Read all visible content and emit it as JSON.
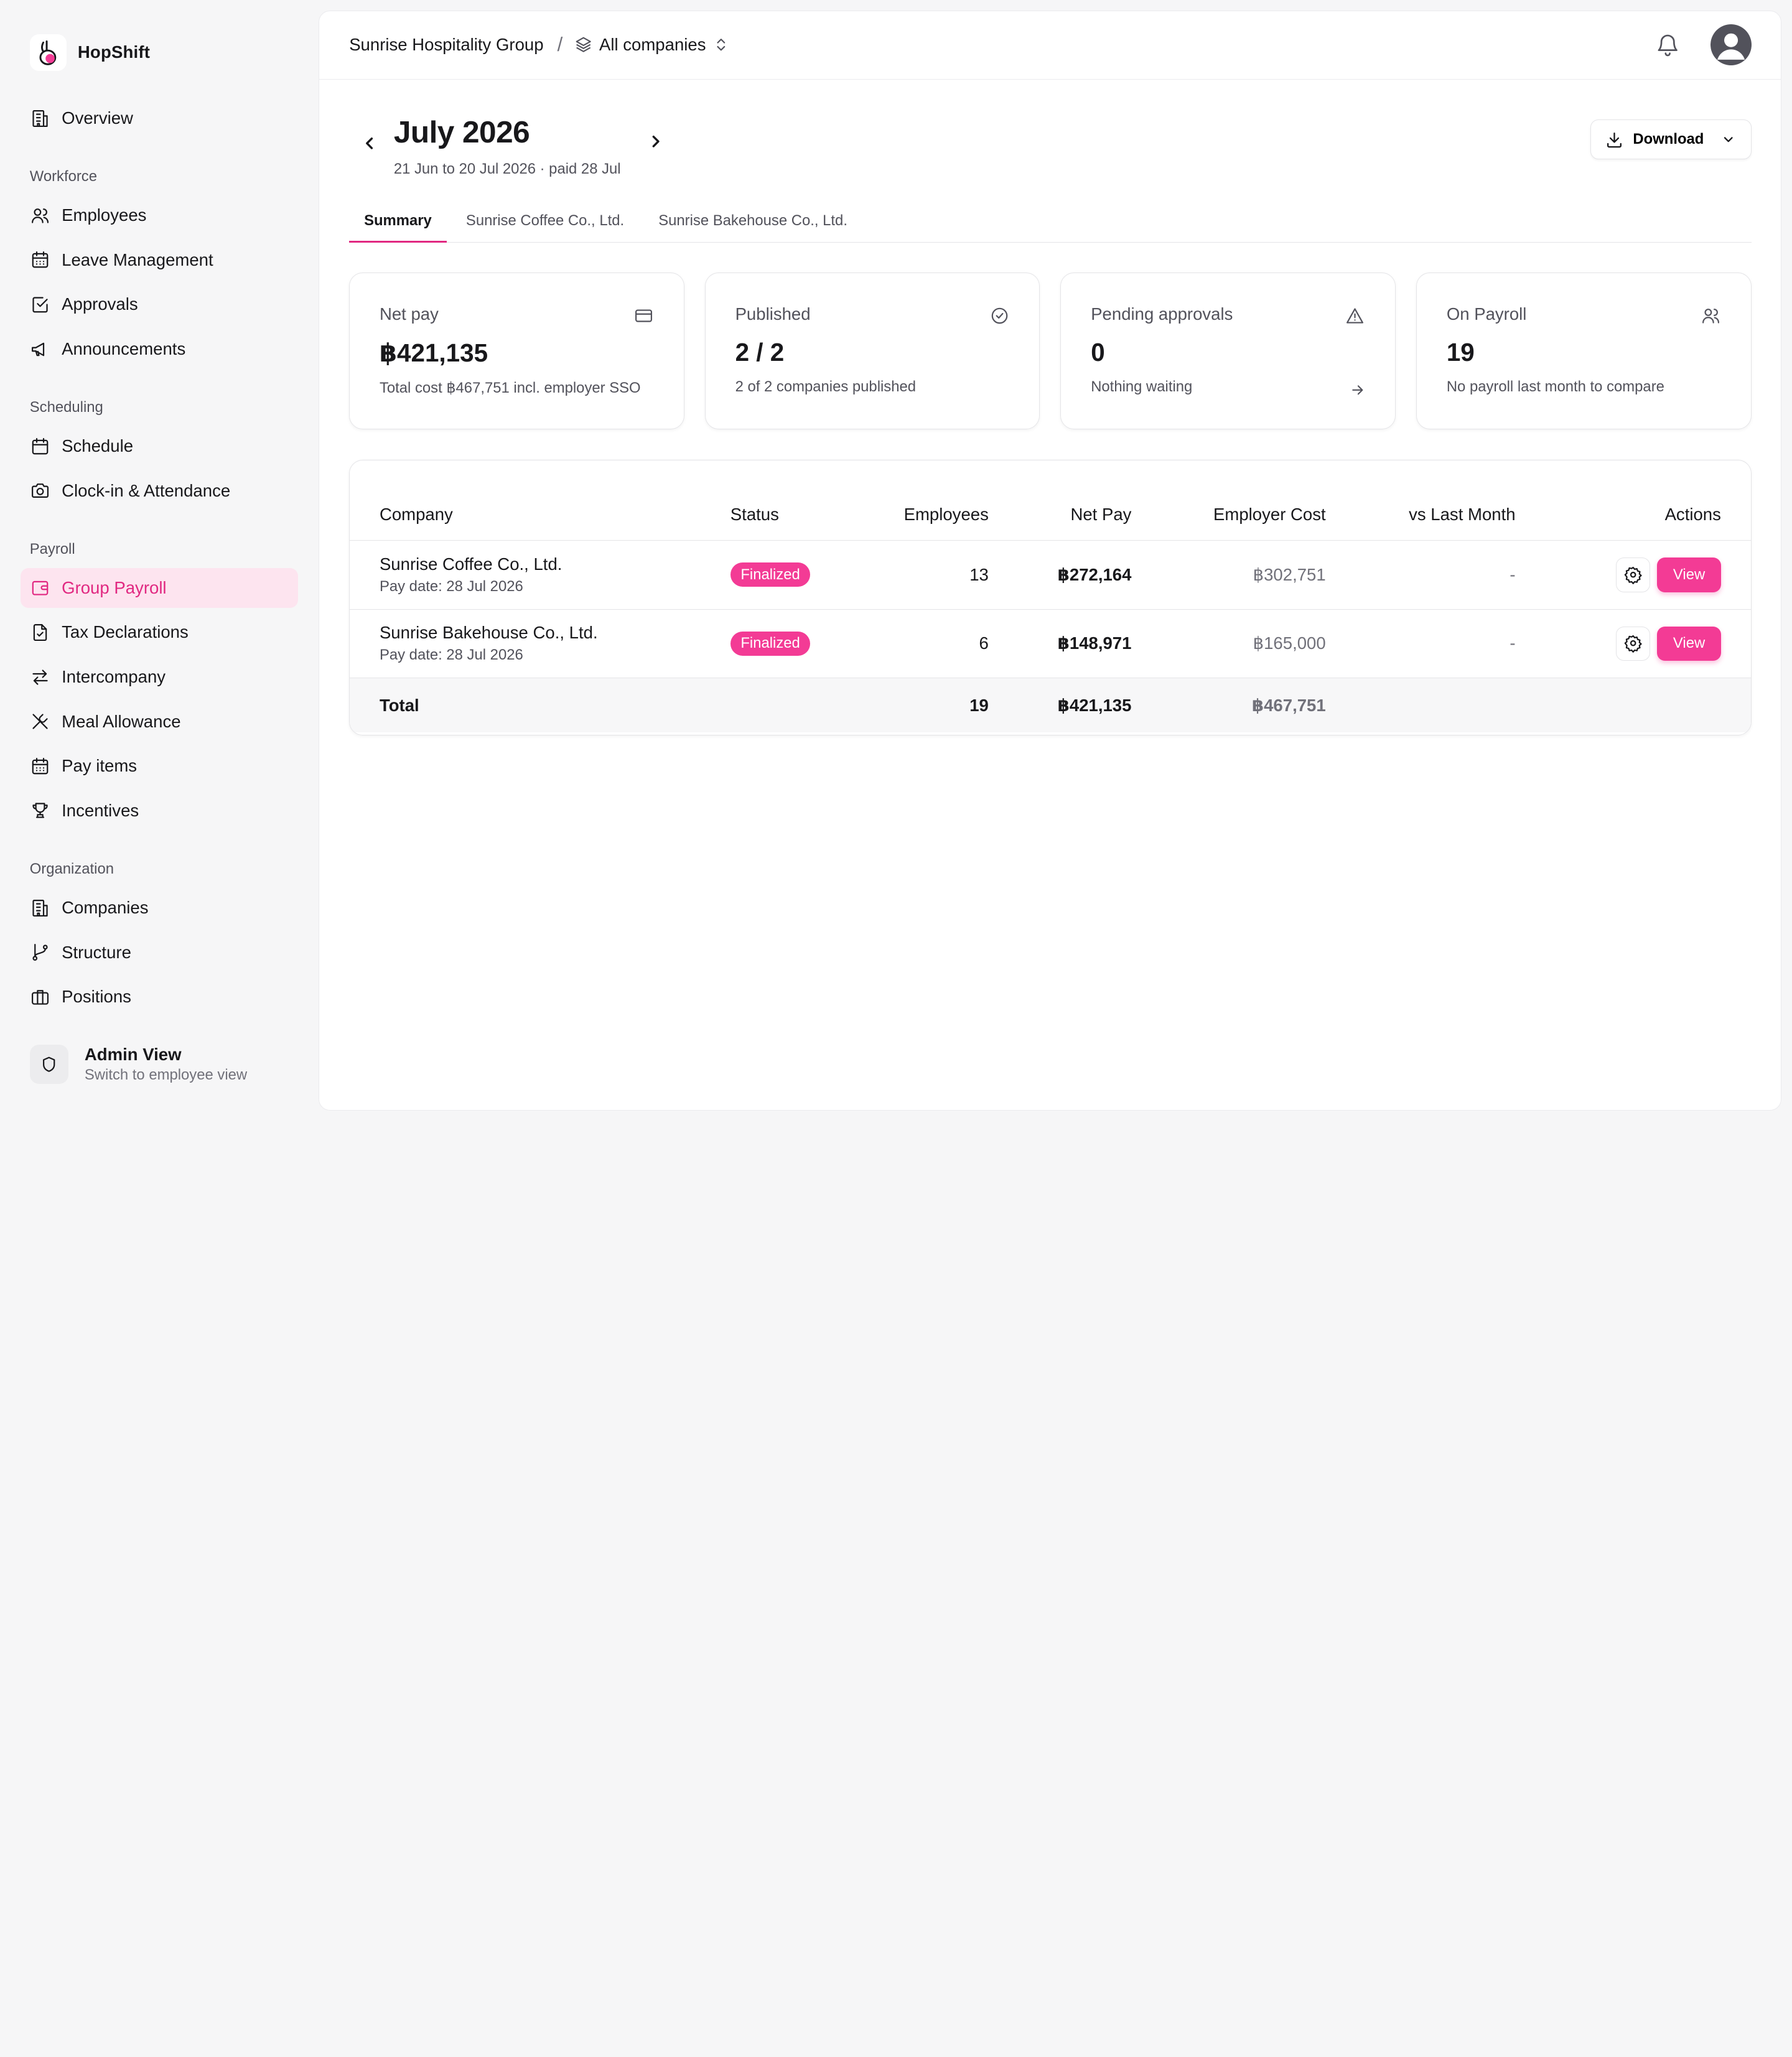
{
  "brand": {
    "name": "HopShift"
  },
  "sidebar": {
    "top_items": [
      {
        "label": "Overview",
        "icon": "building-icon"
      }
    ],
    "sections": [
      {
        "label": "Workforce",
        "items": [
          {
            "label": "Employees",
            "icon": "users-icon"
          },
          {
            "label": "Leave Management",
            "icon": "calendar-grid-icon"
          },
          {
            "label": "Approvals",
            "icon": "check-square-icon"
          },
          {
            "label": "Announcements",
            "icon": "megaphone-icon"
          }
        ]
      },
      {
        "label": "Scheduling",
        "items": [
          {
            "label": "Schedule",
            "icon": "calendar-icon"
          },
          {
            "label": "Clock-in & Attendance",
            "icon": "camera-icon"
          }
        ]
      },
      {
        "label": "Payroll",
        "items": [
          {
            "label": "Group Payroll",
            "icon": "wallet-icon",
            "active": true
          },
          {
            "label": "Tax Declarations",
            "icon": "file-check-icon"
          },
          {
            "label": "Intercompany",
            "icon": "arrows-exchange-icon"
          },
          {
            "label": "Meal Allowance",
            "icon": "utensils-icon"
          },
          {
            "label": "Pay items",
            "icon": "calendar-grid-icon"
          },
          {
            "label": "Incentives",
            "icon": "trophy-icon"
          }
        ]
      },
      {
        "label": "Organization",
        "items": [
          {
            "label": "Companies",
            "icon": "building-icon"
          },
          {
            "label": "Structure",
            "icon": "git-branch-icon"
          },
          {
            "label": "Positions",
            "icon": "briefcase-icon"
          }
        ]
      }
    ],
    "admin": {
      "title": "Admin View",
      "subtitle": "Switch to employee view"
    }
  },
  "header": {
    "org": "Sunrise Hospitality Group",
    "separator": "/",
    "company_selector": "All companies"
  },
  "period": {
    "title": "July 2026",
    "subtitle": "21 Jun to 20 Jul 2026 · paid 28 Jul",
    "download_label": "Download"
  },
  "tabs": [
    "Summary",
    "Sunrise Coffee Co., Ltd.",
    "Sunrise Bakehouse Co., Ltd."
  ],
  "cards": [
    {
      "label": "Net pay",
      "icon": "credit-card-icon",
      "value": "฿421,135",
      "sub": "Total cost ฿467,751 incl. employer SSO"
    },
    {
      "label": "Published",
      "icon": "check-circle-icon",
      "value": "2 / 2",
      "sub": "2 of 2 companies published"
    },
    {
      "label": "Pending approvals",
      "icon": "alert-triangle-icon",
      "value": "0",
      "sub": "Nothing waiting"
    },
    {
      "label": "On Payroll",
      "icon": "users-icon",
      "value": "19",
      "sub": "No payroll last month to compare"
    }
  ],
  "table": {
    "headers": {
      "company": "Company",
      "status": "Status",
      "employees": "Employees",
      "net_pay": "Net Pay",
      "employer_cost": "Employer Cost",
      "vs_last": "vs Last Month",
      "actions": "Actions"
    },
    "rows": [
      {
        "company": "Sunrise Coffee Co., Ltd.",
        "pay_date": "Pay date: 28 Jul 2026",
        "status": "Finalized",
        "employees": "13",
        "net_pay": "฿272,164",
        "employer_cost": "฿302,751",
        "vs_last": "-",
        "action_label": "View"
      },
      {
        "company": "Sunrise Bakehouse Co., Ltd.",
        "pay_date": "Pay date: 28 Jul 2026",
        "status": "Finalized",
        "employees": "6",
        "net_pay": "฿148,971",
        "employer_cost": "฿165,000",
        "vs_last": "-",
        "action_label": "View"
      }
    ],
    "total": {
      "label": "Total",
      "employees": "19",
      "net_pay": "฿421,135",
      "employer_cost": "฿467,751"
    }
  },
  "colors": {
    "accent": "#f33b95",
    "active_bg": "#fde4ef",
    "active_text": "#e12881"
  }
}
